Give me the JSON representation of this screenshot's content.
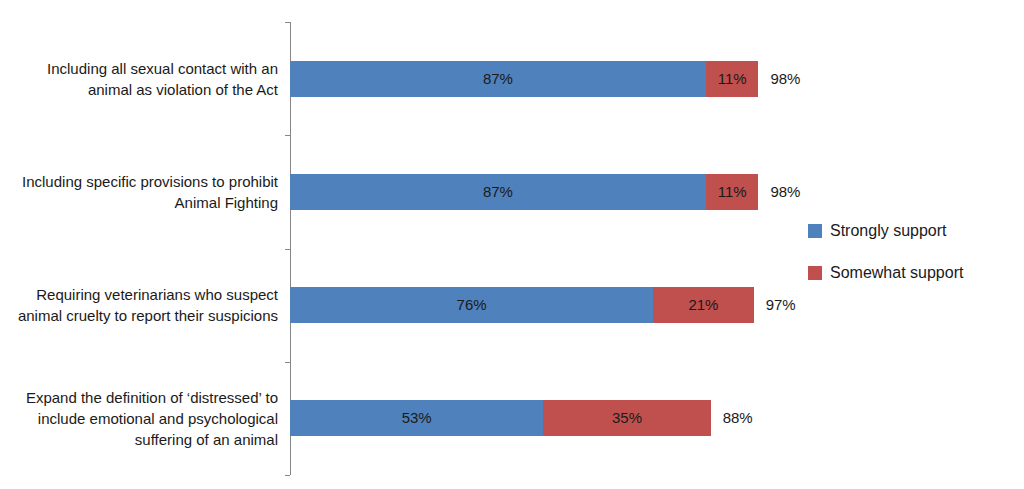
{
  "chart_data": {
    "type": "bar",
    "orientation": "horizontal",
    "stacked": true,
    "data_labels": true,
    "tick_labels": "y",
    "grid": false,
    "legend": "right",
    "categories": [
      "Including all sexual contact with an animal as violation of the Act",
      "Including specific provisions to prohibit Animal Fighting",
      "Requiring veterinarians who suspect animal cruelty to report their suspicions",
      "Expand the definition of ‘distressed’ to include emotional and psychological suffering of an animal"
    ],
    "series": [
      {
        "name": "Strongly support",
        "color": "#4f81bd",
        "values": [
          87,
          87,
          76,
          53
        ],
        "value_labels": [
          "87%",
          "87%",
          "76%",
          "53%"
        ]
      },
      {
        "name": "Somewhat support",
        "color": "#c0504d",
        "values": [
          11,
          11,
          21,
          35
        ],
        "value_labels": [
          "11%",
          "11%",
          "21%",
          "35%"
        ]
      }
    ],
    "totals": {
      "values": [
        98,
        98,
        97,
        88
      ],
      "value_labels": [
        "98%",
        "98%",
        "97%",
        "88%"
      ]
    },
    "xlim": [
      0,
      100
    ]
  }
}
